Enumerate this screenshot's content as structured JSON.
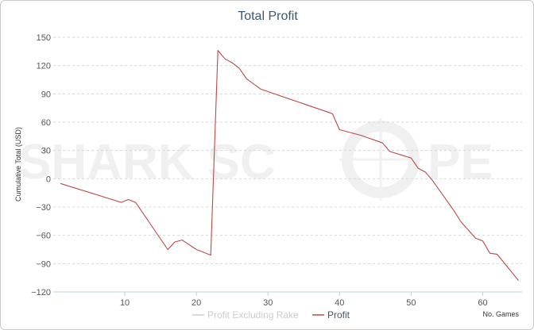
{
  "watermark": {
    "text_left": "SHARK SC",
    "text_right": "PE",
    "logo": "crosshair-scope-icon"
  },
  "chart_data": {
    "type": "line",
    "title": "Total Profit",
    "xlabel": "No. Games",
    "ylabel": "Cumulative Total (USD)",
    "xlim": [
      0,
      65.5
    ],
    "ylim": [
      -120,
      150
    ],
    "xticks": [
      10,
      20,
      30,
      40,
      50,
      60
    ],
    "yticks": [
      150,
      120,
      90,
      60,
      30,
      0,
      -30,
      -60,
      -90,
      -120
    ],
    "ytick_labels": [
      "150",
      "120",
      "90",
      "60",
      "30",
      "0",
      "−30",
      "−60",
      "−90",
      "−120"
    ],
    "grid": "horizontal dashed",
    "legend_position": "bottom-center",
    "series": [
      {
        "name": "Profit Excluding Rake",
        "color": "#cccccc",
        "visible": false,
        "x": [],
        "y": []
      },
      {
        "name": "Profit",
        "color": "#b94a48",
        "visible": true,
        "x": [
          1,
          9.5,
          10.5,
          11.5,
          16,
          17,
          18,
          20,
          22,
          23,
          24,
          25,
          26,
          27,
          29,
          39,
          40,
          43,
          46,
          47,
          50,
          51,
          52,
          53,
          56,
          57,
          59,
          60,
          61,
          62,
          65
        ],
        "y": [
          -5,
          -25,
          -22,
          -25,
          -75,
          -67,
          -65,
          -75,
          -81,
          136,
          127,
          123,
          117,
          106,
          95,
          69,
          52,
          46,
          38,
          29,
          22,
          11,
          7,
          -2,
          -34,
          -46,
          -63,
          -66,
          -79,
          -80,
          -108
        ]
      }
    ]
  }
}
